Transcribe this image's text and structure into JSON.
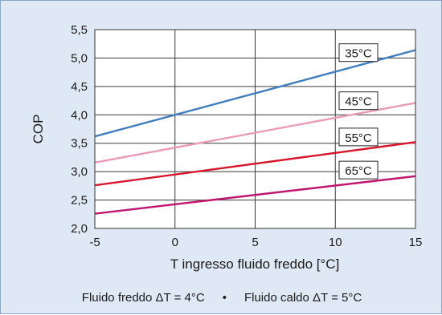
{
  "caption": {
    "left": "Fluido freddo ΔT = 4°C",
    "separator": "•",
    "right": "Fluido caldo ΔT = 5°C"
  },
  "chart_data": {
    "type": "line",
    "xlabel": "T ingresso fluido freddo [°C]",
    "ylabel": "COP",
    "xlim": [
      -5,
      15
    ],
    "ylim": [
      2.0,
      5.5
    ],
    "x_ticks": [
      -5,
      0,
      5,
      10,
      15
    ],
    "y_ticks": [
      "2,0",
      "2,5",
      "3,0",
      "3,5",
      "4,0",
      "4,5",
      "5,0",
      "5,5"
    ],
    "grid": true,
    "series": [
      {
        "name": "35°C",
        "color": "#3f7fc0",
        "x": [
          -5,
          15
        ],
        "y": [
          3.62,
          5.14
        ]
      },
      {
        "name": "45°C",
        "color": "#ea9cb6",
        "x": [
          -5,
          15
        ],
        "y": [
          3.16,
          4.21
        ]
      },
      {
        "name": "55°C",
        "color": "#d8152b",
        "x": [
          -5,
          15
        ],
        "y": [
          2.76,
          3.52
        ]
      },
      {
        "name": "65°C",
        "color": "#c0156e",
        "x": [
          -5,
          15
        ],
        "y": [
          2.26,
          2.92
        ]
      }
    ]
  }
}
